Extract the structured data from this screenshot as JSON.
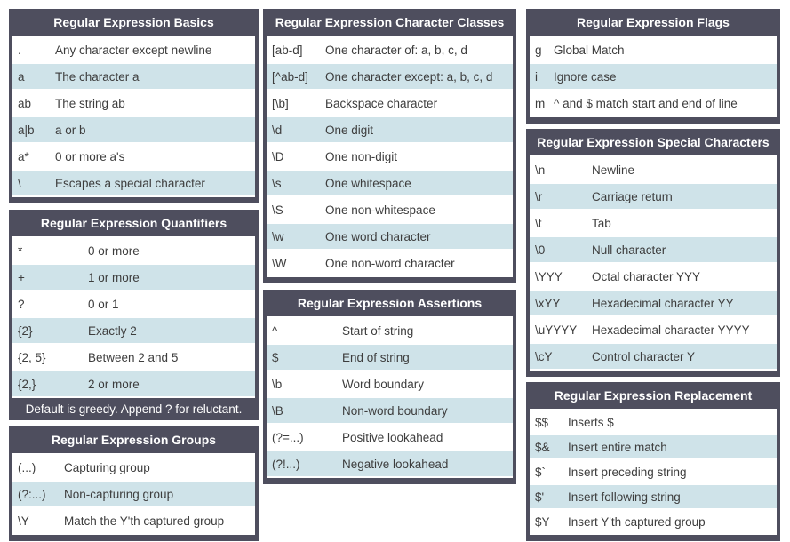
{
  "colors": {
    "header_bg": "#4e4e5e",
    "row_alt_bg": "#cfe3e9",
    "row_bg": "#ffffff",
    "page_bg": "#ffffff",
    "text": "#3d3d3d",
    "header_text": "#ffffff"
  },
  "columns": [
    {
      "id": "left",
      "tables": [
        {
          "id": "basics",
          "title": "Regular Expression Basics",
          "rows": [
            {
              "code": ".",
              "desc": "Any character except newline"
            },
            {
              "code": "a",
              "desc": "The character a"
            },
            {
              "code": "ab",
              "desc": "The string ab"
            },
            {
              "code": "a|b",
              "desc": "a or b"
            },
            {
              "code": "a*",
              "desc": "0 or more a's"
            },
            {
              "code": "\\",
              "desc": "Escapes a special character"
            }
          ]
        },
        {
          "id": "quantifiers",
          "title": "Regular Expression Quantifiers",
          "rows": [
            {
              "code": "*",
              "desc": "0 or more"
            },
            {
              "code": "+",
              "desc": "1 or more"
            },
            {
              "code": "?",
              "desc": "0 or 1"
            },
            {
              "code": "{2}",
              "desc": "Exactly 2"
            },
            {
              "code": "{2, 5}",
              "desc": "Between 2 and 5"
            },
            {
              "code": "{2,}",
              "desc": "2 or more"
            }
          ],
          "footer": "Default is greedy. Append ? for reluctant."
        },
        {
          "id": "groups",
          "title": "Regular Expression Groups",
          "rows": [
            {
              "code": "(...)",
              "desc": "Capturing group"
            },
            {
              "code": "(?:...)",
              "desc": "Non-capturing group"
            },
            {
              "code": "\\Y",
              "desc": "Match the Y'th captured group"
            }
          ]
        }
      ]
    },
    {
      "id": "mid",
      "tables": [
        {
          "id": "classes",
          "title": "Regular Expression Character Classes",
          "rows": [
            {
              "code": "[ab-d]",
              "desc": "One character of: a, b, c, d"
            },
            {
              "code": "[^ab-d]",
              "desc": "One character except: a, b, c, d"
            },
            {
              "code": "[\\b]",
              "desc": "Backspace character"
            },
            {
              "code": "\\d",
              "desc": "One digit"
            },
            {
              "code": "\\D",
              "desc": "One non-digit"
            },
            {
              "code": "\\s",
              "desc": "One whitespace"
            },
            {
              "code": "\\S",
              "desc": "One non-whitespace"
            },
            {
              "code": "\\w",
              "desc": "One word character"
            },
            {
              "code": "\\W",
              "desc": "One non-word character"
            }
          ]
        },
        {
          "id": "assertions",
          "title": "Regular Expression Assertions",
          "rows": [
            {
              "code": "^",
              "desc": "Start of string"
            },
            {
              "code": "$",
              "desc": "End of string"
            },
            {
              "code": "\\b",
              "desc": "Word boundary"
            },
            {
              "code": "\\B",
              "desc": "Non-word boundary"
            },
            {
              "code": "(?=...)",
              "desc": "Positive lookahead"
            },
            {
              "code": "(?!...)",
              "desc": "Negative lookahead"
            }
          ]
        }
      ]
    },
    {
      "id": "right",
      "tables": [
        {
          "id": "flags",
          "title": "Regular Expression Flags",
          "rows": [
            {
              "code": "g",
              "desc": "Global Match"
            },
            {
              "code": "i",
              "desc": "Ignore case"
            },
            {
              "code": "m",
              "desc": "^ and $ match start and end of line"
            }
          ]
        },
        {
          "id": "special",
          "title": "Regular Expression Special Characters",
          "rows": [
            {
              "code": "\\n",
              "desc": "Newline"
            },
            {
              "code": "\\r",
              "desc": "Carriage return"
            },
            {
              "code": "\\t",
              "desc": "Tab"
            },
            {
              "code": "\\0",
              "desc": "Null character"
            },
            {
              "code": "\\YYY",
              "desc": "Octal character YYY"
            },
            {
              "code": "\\xYY",
              "desc": "Hexadecimal character YY"
            },
            {
              "code": "\\uYYYY",
              "desc": "Hexadecimal character YYYY"
            },
            {
              "code": "\\cY",
              "desc": "Control character Y"
            }
          ]
        },
        {
          "id": "replacement",
          "title": "Regular Expression Replacement",
          "rows": [
            {
              "code": "$$",
              "desc": "Inserts $"
            },
            {
              "code": "$&",
              "desc": "Insert entire match"
            },
            {
              "code": "$`",
              "desc": "Insert preceding string"
            },
            {
              "code": "$'",
              "desc": "Insert following string"
            },
            {
              "code": "$Y",
              "desc": "Insert Y'th captured group"
            }
          ]
        }
      ]
    }
  ]
}
